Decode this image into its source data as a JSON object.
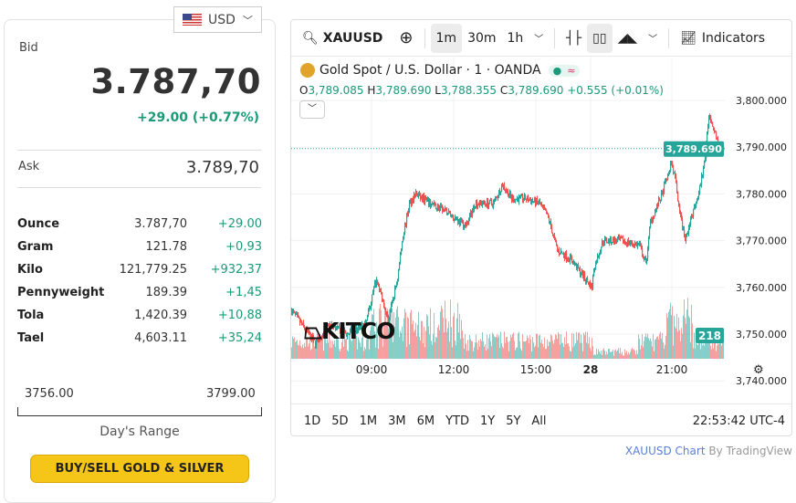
{
  "currency": {
    "code": "USD",
    "flag": "us-flag-icon"
  },
  "quote": {
    "bid_label": "Bid",
    "bid": "3.787,70",
    "change": "+29.00 (+0.77%)",
    "ask_label": "Ask",
    "ask": "3.789,70"
  },
  "units": [
    {
      "name": "Ounce",
      "price": "3.787,70",
      "change": "+29.00"
    },
    {
      "name": "Gram",
      "price": "121.78",
      "change": "+0,93"
    },
    {
      "name": "Kilo",
      "price": "121,779.25",
      "change": "+932,37"
    },
    {
      "name": "Pennyweight",
      "price": "189.39",
      "change": "+1,45"
    },
    {
      "name": "Tola",
      "price": "1,420.39",
      "change": "+10,88"
    },
    {
      "name": "Tael",
      "price": "4,603.11",
      "change": "+35,24"
    }
  ],
  "range": {
    "low": "3756.00",
    "high": "3799.00",
    "label": "Day's Range"
  },
  "buy_button": "BUY/SELL GOLD & SILVER",
  "chart": {
    "symbol": "XAUUSD",
    "intervals": [
      "1m",
      "30m",
      "1h"
    ],
    "indicators": "Indicators",
    "title": "Gold Spot / U.S. Dollar · 1 · OANDA",
    "pill_dot": "●",
    "pill_wave": "≈",
    "ohlc": {
      "o_label": "O",
      "o": "3,789.085",
      "h_label": "H",
      "h": "3,789.690",
      "l_label": "L",
      "l": "3,788.355",
      "c_label": "C",
      "c": "3,789.690",
      "chg": "+0.555 (+0.01%)"
    },
    "last_price": "3,789.690",
    "volume_label": "218",
    "logo": "KITCO",
    "ranges": [
      "1D",
      "5D",
      "1M",
      "3M",
      "6M",
      "YTD",
      "1Y",
      "5Y",
      "All"
    ],
    "clock": "22:53:42 UTC-4",
    "credit_link": "XAUUSD Chart",
    "credit_by": " By TradingView",
    "up_color": "#26a69a",
    "down_color": "#ef5350",
    "chart_data": {
      "type": "candlestick",
      "y_ticks": [
        "3,800.000",
        "3,790.000",
        "3,780.000",
        "3,770.000",
        "3,760.000",
        "3,750.000",
        "3,740.000"
      ],
      "y_values": [
        3800,
        3790,
        3780,
        3770,
        3760,
        3750,
        3740
      ],
      "x_ticks": [
        {
          "label": "09:00",
          "bar": 88
        },
        {
          "label": "12:00",
          "bar": 178
        },
        {
          "label": "15:00",
          "bar": 268
        },
        {
          "label": "28",
          "bar": 328,
          "bold": true
        },
        {
          "label": "21:00",
          "bar": 417
        }
      ],
      "price_path": [
        [
          0,
          3755
        ],
        [
          26,
          3748
        ],
        [
          41,
          3752
        ],
        [
          61,
          3750
        ],
        [
          81,
          3752
        ],
        [
          93,
          3762
        ],
        [
          106,
          3753
        ],
        [
          116,
          3762
        ],
        [
          121,
          3770
        ],
        [
          129,
          3778
        ],
        [
          136,
          3780
        ],
        [
          151,
          3778
        ],
        [
          171,
          3776
        ],
        [
          191,
          3773
        ],
        [
          201,
          3778
        ],
        [
          221,
          3778
        ],
        [
          231,
          3782
        ],
        [
          241,
          3779
        ],
        [
          256,
          3779
        ],
        [
          271,
          3778
        ],
        [
          281,
          3775
        ],
        [
          291,
          3768
        ],
        [
          306,
          3766
        ],
        [
          321,
          3762
        ],
        [
          329,
          3760
        ],
        [
          331,
          3764
        ],
        [
          341,
          3770
        ],
        [
          361,
          3770
        ],
        [
          381,
          3769
        ],
        [
          388,
          3765
        ],
        [
          393,
          3774
        ],
        [
          406,
          3780
        ],
        [
          416,
          3787
        ],
        [
          421,
          3782
        ],
        [
          426,
          3775
        ],
        [
          431,
          3770
        ],
        [
          438,
          3775
        ],
        [
          446,
          3780
        ],
        [
          453,
          3788
        ],
        [
          457,
          3797
        ],
        [
          463,
          3794
        ],
        [
          468,
          3790
        ],
        [
          473,
          3789.69
        ]
      ]
    }
  }
}
